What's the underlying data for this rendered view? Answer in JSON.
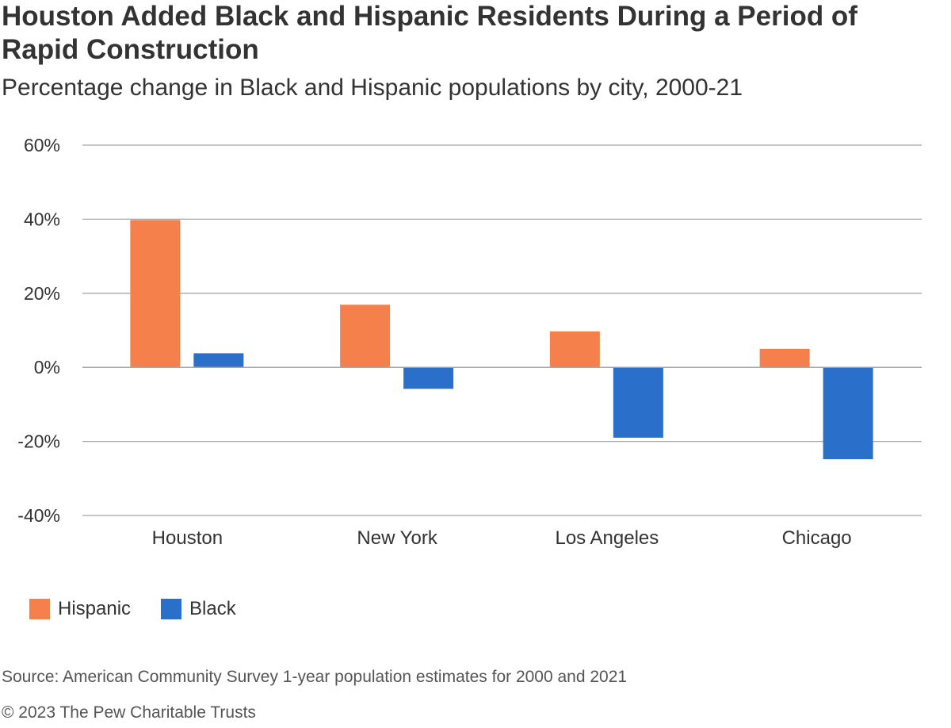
{
  "header": {
    "title": "Houston Added Black and Hispanic Residents During a Period of Rapid Construction",
    "subtitle": "Percentage change in Black and Hispanic populations by city, 2000-21"
  },
  "footer": {
    "source": "Source: American Community Survey 1-year population estimates for 2000 and 2021",
    "copyright": "© 2023 The Pew Charitable Trusts"
  },
  "chart_data": {
    "type": "bar",
    "title": "Houston Added Black and Hispanic Residents During a Period of Rapid Construction",
    "subtitle": "Percentage change in Black and Hispanic populations by city, 2000-21",
    "categories": [
      "Houston",
      "New York",
      "Los Angeles",
      "Chicago"
    ],
    "series": [
      {
        "name": "Hispanic",
        "color": "#F5804B",
        "values": [
          39.8,
          16.9,
          9.7,
          5.0
        ]
      },
      {
        "name": "Black",
        "color": "#2A6FC9",
        "values": [
          3.8,
          -5.8,
          -19.0,
          -24.8
        ]
      }
    ],
    "ylim": [
      -40,
      60
    ],
    "yticks": [
      60,
      40,
      20,
      0,
      -20,
      -40
    ],
    "ytick_labels": [
      "60%",
      "40%",
      "20%",
      "0%",
      "-20%",
      "-40%"
    ],
    "xlabel": "",
    "ylabel": "",
    "grid": true,
    "legend": "bottom-left"
  }
}
